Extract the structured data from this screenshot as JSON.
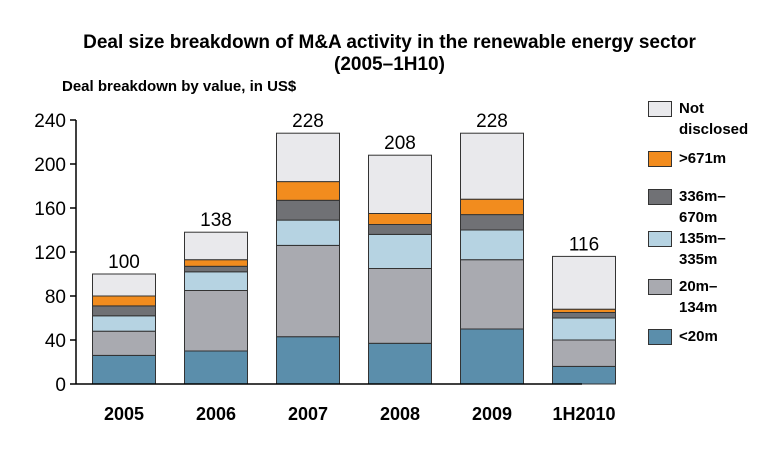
{
  "chart_data": {
    "type": "bar",
    "stacked": true,
    "title": "Deal size breakdown of M&A activity in the renewable energy sector",
    "title_line2": "(2005–1H10)",
    "subtitle": "Deal breakdown by value, in US$",
    "categories": [
      "2005",
      "2006",
      "2007",
      "2008",
      "2009",
      "1H2010"
    ],
    "ylim": [
      0,
      240
    ],
    "yticks": [
      0,
      40,
      80,
      120,
      160,
      200,
      240
    ],
    "totals": [
      "100",
      "138",
      "228",
      "208",
      "228",
      "116"
    ],
    "totals_values": [
      100,
      138,
      228,
      208,
      228,
      116
    ],
    "series": [
      {
        "name": "<20m",
        "values": [
          26,
          30,
          43,
          37,
          50,
          16
        ],
        "color": "#5b8eab"
      },
      {
        "name": "20m–134m",
        "values": [
          22,
          55,
          83,
          68,
          63,
          24
        ],
        "color": "#a9aab0"
      },
      {
        "name": "135m–335m",
        "values": [
          14,
          17,
          23,
          31,
          27,
          20
        ],
        "color": "#b6d3e2"
      },
      {
        "name": "336m–670m",
        "values": [
          9,
          5,
          18,
          9,
          14,
          5
        ],
        "color": "#707175"
      },
      {
        "name": ">671m",
        "values": [
          9,
          6,
          17,
          10,
          14,
          3
        ],
        "color": "#f28c1e"
      },
      {
        "name": "Not disclosed",
        "values": [
          20,
          25,
          44,
          53,
          60,
          48
        ],
        "color": "#e9e9ec"
      }
    ],
    "legend": [
      {
        "label": "Not\ndisclosed",
        "color": "#e9e9ec"
      },
      {
        "label": ">671m",
        "color": "#f28c1e"
      },
      {
        "label": "336m–\n670m",
        "color": "#707175"
      },
      {
        "label": "135m–\n335m",
        "color": "#b6d3e2"
      },
      {
        "label": "20m–\n134m",
        "color": "#a9aab0"
      },
      {
        "label": "<20m",
        "color": "#5b8eab"
      }
    ],
    "legend_placement": "right",
    "grid": false
  }
}
